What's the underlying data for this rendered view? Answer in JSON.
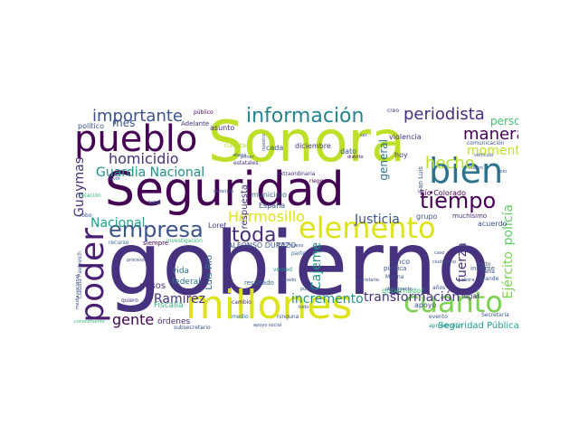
{
  "words": [
    {
      "text": "gobierno",
      "color": "#46327e"
    },
    {
      "text": "Sonora",
      "color": "#bddf26"
    },
    {
      "text": "Seguridad",
      "color": "#440154"
    },
    {
      "text": "millones",
      "color": "#dde318"
    },
    {
      "text": "pueblo",
      "color": "#440154"
    },
    {
      "text": "cuanto",
      "color": "#7ad151"
    },
    {
      "text": "elemento",
      "color": "#dde318"
    },
    {
      "text": "bien",
      "color": "#2c728e"
    },
    {
      "text": "poder",
      "color": "#481f70"
    },
    {
      "text": "información",
      "color": "#26828e"
    },
    {
      "text": "tiempo",
      "color": "#440154"
    },
    {
      "text": "empresa",
      "color": "#3b528b"
    },
    {
      "text": "importante",
      "color": "#3b528b"
    },
    {
      "text": "periodista",
      "color": "#472d7b"
    },
    {
      "text": "manera",
      "color": "#440154"
    },
    {
      "text": "hecho",
      "color": "#b5de2b"
    },
    {
      "text": "toda",
      "color": "#472d7b"
    },
    {
      "text": "Hermosillo",
      "color": "#dde318"
    },
    {
      "text": "homicidio",
      "color": "#46327e"
    },
    {
      "text": "Guardia Nacional",
      "color": "#21918c"
    },
    {
      "text": "Justicia",
      "color": "#3b528b"
    },
    {
      "text": "momento",
      "color": "#bddf26"
    },
    {
      "text": "persona",
      "color": "#44bf70"
    },
    {
      "text": "gente",
      "color": "#440154"
    },
    {
      "text": "Nacional",
      "color": "#1f9e89"
    },
    {
      "text": "Ramírez",
      "color": "#46327e"
    },
    {
      "text": "incremento",
      "color": "#21918c"
    },
    {
      "text": "transformación",
      "color": "#46327e"
    },
    {
      "text": "Guaymas",
      "color": "#46327e"
    },
    {
      "text": "Cajeme",
      "color": "#21918c"
    },
    {
      "text": "fuerza",
      "color": "#46327e"
    },
    {
      "text": "Ejército",
      "color": "#7ad151"
    },
    {
      "text": "policía",
      "color": "#5ec962"
    },
    {
      "text": "general",
      "color": "#2c728e"
    },
    {
      "text": "mes",
      "color": "#3b528b"
    },
    {
      "text": "Seguridad Pública",
      "color": "#1f9e89"
    },
    {
      "text": "respuesta",
      "color": "#46327e"
    },
    {
      "text": "Fiscalía",
      "color": "#35b779"
    },
    {
      "text": "pesos",
      "color": "#472d7b"
    },
    {
      "text": "órdenes",
      "color": "#472d7b"
    },
    {
      "text": "Luis Río",
      "color": "#31688e"
    },
    {
      "text": "vida",
      "color": "#2c728e"
    },
    {
      "text": "federal",
      "color": "#2c728e"
    },
    {
      "text": "cada",
      "color": "#3b528b"
    },
    {
      "text": "municipio",
      "color": "#31688e"
    },
    {
      "text": "España",
      "color": "#3b528b"
    },
    {
      "text": "Loret",
      "color": "#443983"
    },
    {
      "text": "diciembre",
      "color": "#46327e"
    },
    {
      "text": "dato",
      "color": "#3b528b"
    },
    {
      "text": "hoy",
      "color": "#46327e"
    },
    {
      "text": "violencia",
      "color": "#472d7b"
    },
    {
      "text": "Río Colorado",
      "color": "#440154"
    },
    {
      "text": "grupo",
      "color": "#3b528b"
    },
    {
      "text": "acuerdo",
      "color": "#3b528b"
    },
    {
      "text": "muchísimo",
      "color": "#472d7b"
    },
    {
      "text": "asunto",
      "color": "#472d7b"
    },
    {
      "text": "político",
      "color": "#3b528b"
    },
    {
      "text": "Adelante",
      "color": "#472d7b"
    },
    {
      "text": "ALFONSO DURAZO",
      "color": "#3b528b"
    },
    {
      "text": "gobernador",
      "color": "#35b779"
    },
    {
      "text": "cinco",
      "color": "#3b528b"
    },
    {
      "text": "pública",
      "color": "#3b528b"
    },
    {
      "text": "apoyo",
      "color": "#3b528b"
    },
    {
      "text": "lugar",
      "color": "#46327e"
    },
    {
      "text": "informe",
      "color": "#3b528b"
    },
    {
      "text": "siempre",
      "color": "#440154"
    },
    {
      "text": "recurso",
      "color": "#31688e"
    },
    {
      "text": "resultado",
      "color": "#31688e"
    },
    {
      "text": "cambio",
      "color": "#472d7b"
    },
    {
      "text": "quiero",
      "color": "#472d7b"
    },
    {
      "text": "estatales",
      "color": "#472d7b"
    },
    {
      "text": "extraordinaria",
      "color": "#472d7b"
    },
    {
      "text": "riego",
      "color": "#440154"
    },
    {
      "text": "San Luis",
      "color": "#3b528b"
    },
    {
      "text": "total",
      "color": "#31688e"
    },
    {
      "text": "parte",
      "color": "#31688e"
    },
    {
      "text": "verdad",
      "color": "#21918c"
    },
    {
      "text": "cuenta",
      "color": "#b5de2b"
    },
    {
      "text": "investigación",
      "color": "#35b779"
    },
    {
      "text": "comunicación",
      "color": "#3b528b"
    },
    {
      "text": "público",
      "color": "#440154"
    },
    {
      "text": "creo",
      "color": "#472d7b"
    },
    {
      "text": "nuestro",
      "color": "#3b528b"
    },
    {
      "text": "etapa",
      "color": "#3b528b"
    },
    {
      "text": "Marina",
      "color": "#3b528b"
    },
    {
      "text": "evento",
      "color": "#3b528b"
    },
    {
      "text": "obviamente",
      "color": "#3b528b"
    },
    {
      "text": "años",
      "color": "#3b528b"
    },
    {
      "text": "aprehensión",
      "color": "#21918c"
    },
    {
      "text": "subsecretario",
      "color": "#3b528b"
    },
    {
      "text": "medio",
      "color": "#2c728e"
    },
    {
      "text": "ninguna",
      "color": "#3b528b"
    },
    {
      "text": "visto",
      "color": "#3b528b"
    },
    {
      "text": "gana",
      "color": "#3b528b"
    },
    {
      "text": "grande",
      "color": "#3b528b"
    },
    {
      "text": "Secretaría",
      "color": "#3b528b"
    },
    {
      "text": "cuatro",
      "color": "#3b528b"
    },
    {
      "text": "solo",
      "color": "#3b528b"
    },
    {
      "text": "vehículo",
      "color": "#3b528b"
    },
    {
      "text": "distrito",
      "color": "#440154"
    },
    {
      "text": "robo",
      "color": "#3b528b"
    },
    {
      "text": "relación",
      "color": "#35b779"
    },
    {
      "text": "Claudia Pavlovich",
      "color": "#3b528b"
    },
    {
      "text": "media nacional",
      "color": "#3b528b"
    },
    {
      "text": "conocimiento",
      "color": "#35b779"
    },
    {
      "text": "favor",
      "color": "#3b528b"
    },
    {
      "text": "secretaria",
      "color": "#3b528b"
    },
    {
      "text": "tomado",
      "color": "#3b528b"
    },
    {
      "text": "puedo",
      "color": "#3b528b"
    },
    {
      "text": "proceso",
      "color": "#3b528b"
    },
    {
      "text": "ciudadano",
      "color": "#3b528b"
    },
    {
      "text": "nuevo",
      "color": "#3b528b"
    },
    {
      "text": "detenido",
      "color": "#3b528b"
    },
    {
      "text": "caso",
      "color": "#3b528b"
    },
    {
      "text": "poner",
      "color": "#3b528b"
    },
    {
      "text": "enero",
      "color": "#3b528b"
    },
    {
      "text": "todo",
      "color": "#3b528b"
    },
    {
      "text": "apoyo social",
      "color": "#3b528b"
    },
    {
      "text": "ser",
      "color": "#3b528b"
    },
    {
      "text": "ahora",
      "color": "#3b528b"
    }
  ]
}
